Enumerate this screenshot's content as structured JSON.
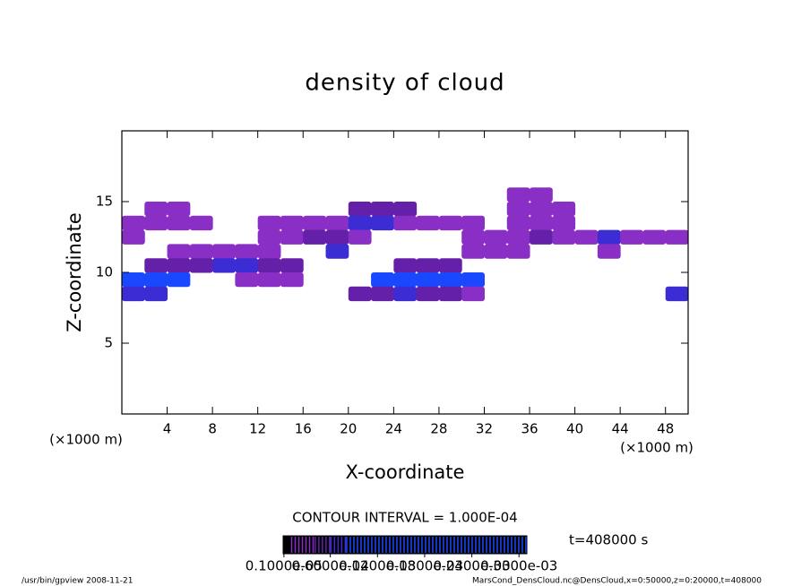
{
  "chart_data": {
    "type": "contour",
    "title": "density of cloud",
    "x_label": "X-coordinate",
    "y_label": "Z-coordinate",
    "x_unit": "(×1000 m)",
    "xlim": [
      0,
      50
    ],
    "ylim": [
      0,
      20
    ],
    "xticks": [
      4,
      8,
      12,
      16,
      20,
      24,
      28,
      32,
      36,
      40,
      44,
      48
    ],
    "yticks": [
      5,
      10,
      15
    ],
    "x": [
      1,
      3,
      5,
      7,
      9,
      11,
      13,
      15,
      17,
      19,
      21,
      23,
      25,
      27,
      29,
      31,
      33,
      35,
      37,
      39,
      41,
      43,
      45,
      47,
      49
    ],
    "z": [
      15.5,
      14.5,
      13.5,
      12.5,
      11.5,
      10.5,
      9.5,
      8.5
    ],
    "values": [
      [
        null,
        null,
        null,
        null,
        null,
        null,
        null,
        null,
        null,
        null,
        null,
        null,
        null,
        null,
        null,
        null,
        null,
        3e-05,
        3e-05,
        null,
        null,
        null,
        null,
        null,
        null
      ],
      [
        null,
        2e-05,
        2e-05,
        null,
        null,
        null,
        null,
        null,
        null,
        null,
        4e-05,
        4e-05,
        4e-05,
        null,
        null,
        null,
        null,
        3e-05,
        3e-05,
        3e-05,
        null,
        null,
        null,
        null,
        null
      ],
      [
        2e-05,
        3e-05,
        3e-05,
        3e-05,
        null,
        null,
        3e-05,
        3e-05,
        3e-05,
        3e-05,
        6e-05,
        6e-05,
        3e-05,
        3e-05,
        3e-05,
        3e-05,
        null,
        3e-05,
        3e-05,
        3e-05,
        null,
        null,
        null,
        null,
        null
      ],
      [
        2e-05,
        null,
        null,
        null,
        null,
        null,
        2e-05,
        2e-05,
        4e-05,
        4e-05,
        3e-05,
        null,
        null,
        null,
        null,
        3e-05,
        3e-05,
        3e-05,
        5e-05,
        3e-05,
        3e-05,
        7e-05,
        3e-05,
        3e-05,
        2e-05
      ],
      [
        null,
        null,
        2e-05,
        2e-05,
        2e-05,
        2e-05,
        2e-05,
        null,
        null,
        6e-05,
        null,
        null,
        null,
        null,
        null,
        3e-05,
        3e-05,
        3e-05,
        null,
        null,
        null,
        2e-05,
        null,
        null,
        null
      ],
      [
        null,
        4e-05,
        4e-05,
        4e-05,
        7e-05,
        6e-05,
        4e-05,
        4e-05,
        null,
        null,
        null,
        null,
        5e-05,
        5e-05,
        5e-05,
        null,
        null,
        null,
        null,
        null,
        null,
        null,
        null,
        null,
        null
      ],
      [
        8e-05,
        8e-05,
        8e-05,
        null,
        null,
        3e-05,
        3e-05,
        3e-05,
        null,
        null,
        null,
        9e-05,
        9e-05,
        0.00011,
        9e-05,
        9e-05,
        null,
        null,
        null,
        null,
        null,
        null,
        null,
        null,
        null
      ],
      [
        6e-05,
        6e-05,
        null,
        null,
        null,
        null,
        null,
        null,
        null,
        null,
        4e-05,
        4e-05,
        6e-05,
        5e-05,
        5e-05,
        3e-05,
        null,
        null,
        null,
        null,
        null,
        null,
        null,
        null,
        7e-05
      ]
    ],
    "levels": [
      1e-05,
      4e-05,
      6e-05,
      8e-05
    ],
    "colors": [
      "#8a2fc6",
      "#6420a8",
      "#3c2cd4",
      "#1a48ff"
    ],
    "contour_interval": "CONTOUR INTERVAL = 1.000E-04",
    "time_label": "t=408000 s",
    "colorbar": {
      "lim": [
        0,
        0.00031
      ],
      "ticks": [
        {
          "value": 1e-06,
          "label": "0.1000e-05"
        },
        {
          "value": 6e-05,
          "label": "0.6000e-04"
        },
        {
          "value": 0.00012,
          "label": "0.1200e-03"
        },
        {
          "value": 0.00018,
          "label": "0.1800e-03"
        },
        {
          "value": 0.00024,
          "label": "0.2400e-03"
        },
        {
          "value": 0.0003,
          "label": "0.3000e-03"
        }
      ]
    },
    "footer_left": "/usr/bin/gpview   2008-11-21",
    "footer_right": "MarsCond_DensCloud.nc@DensCloud,x=0:50000,z=0:20000,t=408000"
  }
}
